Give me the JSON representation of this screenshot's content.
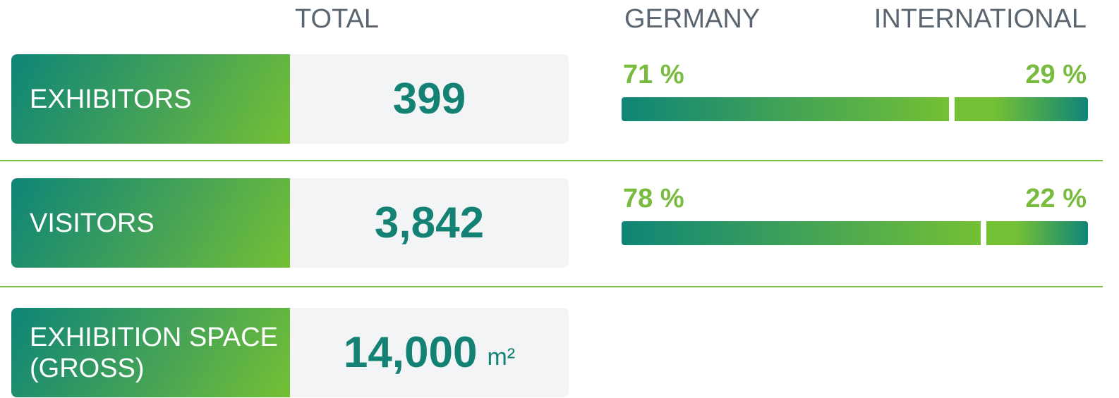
{
  "header": {
    "total": "TOTAL",
    "germany": "GERMANY",
    "international": "INTERNATIONAL"
  },
  "rows": [
    {
      "label": "EXHIBITORS",
      "total": "399",
      "germany": {
        "value": 71,
        "label": "71 %"
      },
      "international": {
        "value": 29,
        "label": "29 %"
      }
    },
    {
      "label": "VISITORS",
      "total": "3,842",
      "germany": {
        "value": 78,
        "label": "78 %"
      },
      "international": {
        "value": 22,
        "label": "22 %"
      }
    },
    {
      "label": "EXHIBITION SPACE (GROSS)",
      "total": "14,000",
      "unit": "m²"
    }
  ]
}
